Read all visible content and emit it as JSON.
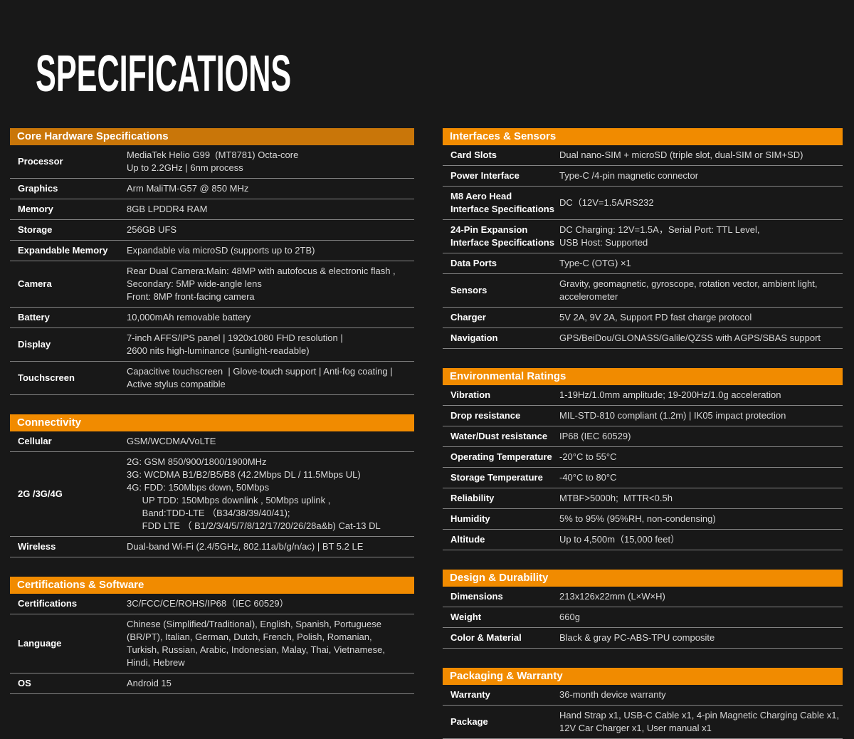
{
  "page": {
    "title": "SPECIFICATIONS",
    "background_color": "#181818",
    "accent_color": "#f18b00",
    "accent_color_dark": "#c97609",
    "divider_color": "#848484"
  },
  "columns": {
    "left": [
      {
        "title": "Core Hardware Specifications",
        "header_color": "#c97609",
        "rows": [
          {
            "label_lines": [
              "Processor"
            ],
            "value_lines": [
              "MediaTek Helio G99  (MT8781) Octa-core",
              "Up to 2.2GHz | 6nm process"
            ]
          },
          {
            "label_lines": [
              "Graphics"
            ],
            "value_lines": [
              "Arm MaliTM-G57 @ 850 MHz"
            ]
          },
          {
            "label_lines": [
              "Memory"
            ],
            "value_lines": [
              "8GB LPDDR4 RAM"
            ]
          },
          {
            "label_lines": [
              "Storage"
            ],
            "value_lines": [
              "256GB UFS"
            ]
          },
          {
            "label_lines": [
              "Expandable Memory"
            ],
            "value_lines": [
              "Expandable via microSD (supports up to 2TB)"
            ]
          },
          {
            "label_lines": [
              "Camera"
            ],
            "value_lines": [
              "Rear Dual Camera:Main: 48MP with autofocus & electronic flash ,",
              "Secondary: 5MP wide-angle lens",
              "Front: 8MP front-facing camera"
            ]
          },
          {
            "label_lines": [
              "Battery"
            ],
            "value_lines": [
              "10,000mAh removable battery"
            ]
          },
          {
            "label_lines": [
              "Display"
            ],
            "value_lines": [
              "7-inch AFFS/IPS panel | 1920x1080 FHD resolution |",
              "2600 nits high-luminance (sunlight-readable)"
            ]
          },
          {
            "label_lines": [
              "Touchscreen"
            ],
            "value_lines": [
              "Capacitive touchscreen  | Glove-touch support | Anti-fog coating |",
              "Active stylus compatible"
            ]
          }
        ]
      },
      {
        "title": "Connectivity",
        "header_color": "#f18b00",
        "rows": [
          {
            "label_lines": [
              "Cellular"
            ],
            "value_lines": [
              "GSM/WCDMA/VoLTE"
            ]
          },
          {
            "label_lines": [
              "2G /3G/4G"
            ],
            "value_lines": [
              "2G: GSM 850/900/1800/1900MHz",
              "3G: WCDMA B1/B2/B5/B8 (42.2Mbps DL / 11.5Mbps UL)",
              "4G: FDD: 150Mbps down, 50Mbps",
              "      UP TDD: 150Mbps downlink , 50Mbps uplink ,",
              "      Band:TDD-LTE （B34/38/39/40/41);",
              "      FDD LTE （ B1/2/3/4/5/7/8/12/17/20/26/28a&b) Cat-13 DL"
            ]
          },
          {
            "label_lines": [
              "Wireless"
            ],
            "value_lines": [
              "Dual-band Wi-Fi (2.4/5GHz, 802.11a/b/g/n/ac) | BT 5.2 LE"
            ]
          }
        ]
      },
      {
        "title": "Certifications & Software",
        "header_color": "#f18b00",
        "rows": [
          {
            "label_lines": [
              "Certifications"
            ],
            "value_lines": [
              "3C/FCC/CE/ROHS/IP68（IEC 60529）"
            ]
          },
          {
            "label_lines": [
              "Language"
            ],
            "value_lines": [
              "Chinese (Simplified/Traditional), English, Spanish, Portuguese",
              "(BR/PT), Italian, German, Dutch, French, Polish, Romanian,",
              "Turkish, Russian, Arabic, Indonesian, Malay, Thai, Vietnamese,",
              "Hindi, Hebrew"
            ]
          },
          {
            "label_lines": [
              "OS"
            ],
            "value_lines": [
              "Android 15"
            ]
          }
        ]
      }
    ],
    "right": [
      {
        "title": "Interfaces & Sensors",
        "header_color": "#f18b00",
        "rows": [
          {
            "label_lines": [
              "Card Slots"
            ],
            "value_lines": [
              "Dual nano-SIM + microSD (triple slot, dual-SIM or SIM+SD)"
            ]
          },
          {
            "label_lines": [
              "Power Interface"
            ],
            "value_lines": [
              "Type-C /4-pin magnetic connector"
            ]
          },
          {
            "label_lines": [
              "M8 Aero Head",
              "Interface Specifications"
            ],
            "value_lines": [
              "DC（12V=1.5A/RS232"
            ]
          },
          {
            "label_lines": [
              "24-Pin Expansion",
              "Interface Specifications"
            ],
            "value_lines": [
              "DC Charging: 12V=1.5A，Serial Port: TTL Level,",
              "USB Host: Supported"
            ]
          },
          {
            "label_lines": [
              "Data Ports"
            ],
            "value_lines": [
              "Type-C (OTG) ×1"
            ]
          },
          {
            "label_lines": [
              "Sensors"
            ],
            "value_lines": [
              "Gravity, geomagnetic, gyroscope, rotation vector, ambient light,",
              "accelerometer"
            ]
          },
          {
            "label_lines": [
              "Charger"
            ],
            "value_lines": [
              "5V 2A, 9V 2A, Support PD fast charge protocol"
            ]
          },
          {
            "label_lines": [
              "Navigation"
            ],
            "value_lines": [
              "GPS/BeiDou/GLONASS/Galile/QZSS with AGPS/SBAS support"
            ]
          }
        ]
      },
      {
        "title": "Environmental Ratings",
        "header_color": "#f18b00",
        "rows": [
          {
            "label_lines": [
              "Vibration"
            ],
            "value_lines": [
              "1-19Hz/1.0mm amplitude; 19-200Hz/1.0g acceleration"
            ]
          },
          {
            "label_lines": [
              "Drop resistance"
            ],
            "value_lines": [
              "MIL-STD-810 compliant (1.2m) | IK05 impact protection"
            ]
          },
          {
            "label_lines": [
              "Water/Dust resistance"
            ],
            "value_lines": [
              "IP68 (IEC 60529)"
            ]
          },
          {
            "label_lines": [
              "Operating Temperature"
            ],
            "value_lines": [
              "-20°C to 55°C"
            ]
          },
          {
            "label_lines": [
              "Storage Temperature"
            ],
            "value_lines": [
              "-40°C to 80°C"
            ]
          },
          {
            "label_lines": [
              "Reliability"
            ],
            "value_lines": [
              "MTBF>5000h;  MTTR<0.5h"
            ]
          },
          {
            "label_lines": [
              "Humidity"
            ],
            "value_lines": [
              "5% to 95% (95%RH, non-condensing)"
            ]
          },
          {
            "label_lines": [
              "Altitude"
            ],
            "value_lines": [
              "Up to 4,500m（15,000 feet）"
            ]
          }
        ]
      },
      {
        "title": "Design & Durability",
        "header_color": "#f18b00",
        "rows": [
          {
            "label_lines": [
              "Dimensions"
            ],
            "value_lines": [
              "213x126x22mm (L×W×H)"
            ]
          },
          {
            "label_lines": [
              "Weight"
            ],
            "value_lines": [
              "660g"
            ]
          },
          {
            "label_lines": [
              "Color & Material"
            ],
            "value_lines": [
              "Black & gray PC-ABS-TPU composite"
            ]
          }
        ]
      },
      {
        "title": "Packaging & Warranty",
        "header_color": "#f18b00",
        "rows": [
          {
            "label_lines": [
              "Warranty"
            ],
            "value_lines": [
              "36-month device warranty"
            ]
          },
          {
            "label_lines": [
              "Package"
            ],
            "value_lines": [
              "Hand Strap x1, USB-C Cable x1, 4-pin Magnetic Charging Cable x1,",
              "12V Car Charger x1, User manual x1"
            ]
          }
        ]
      }
    ]
  }
}
